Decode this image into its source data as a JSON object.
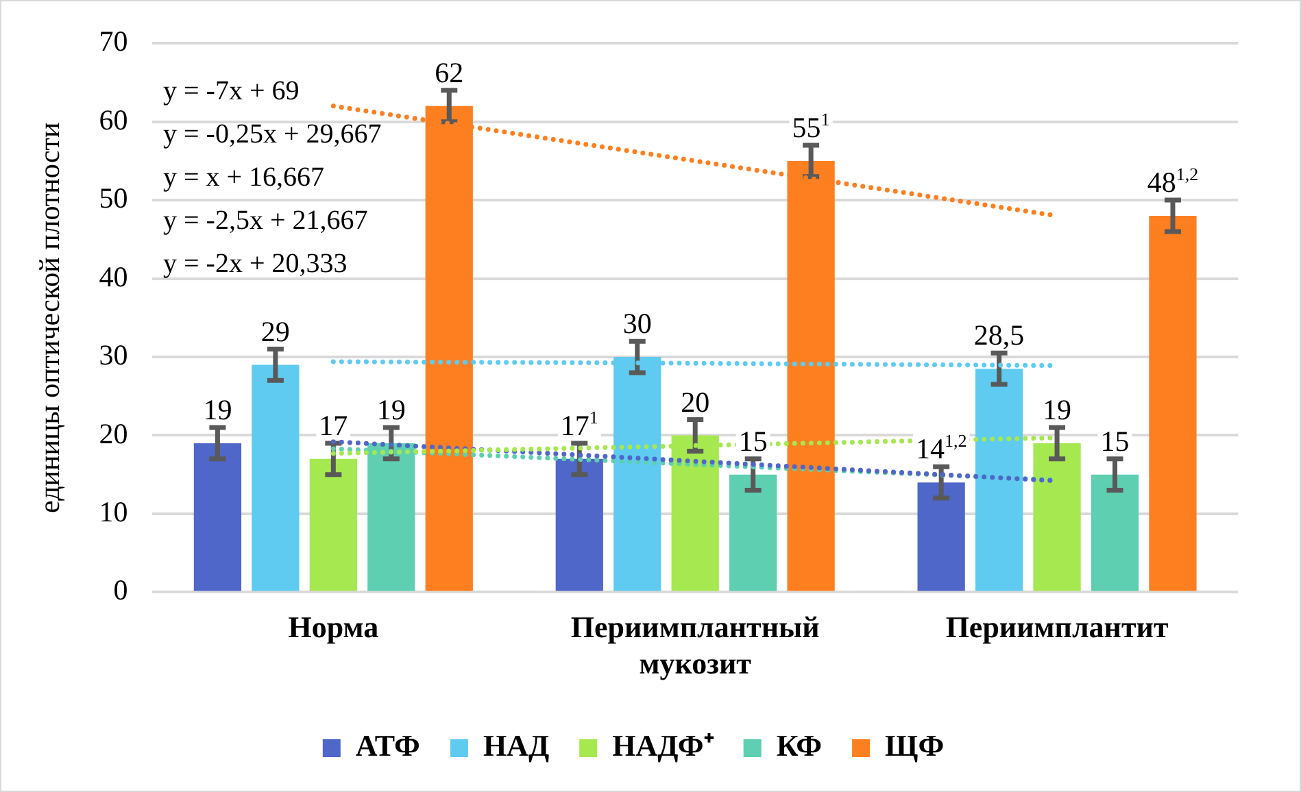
{
  "chart_data": {
    "type": "bar",
    "ylabel": "единицы оптической плотности",
    "categories": [
      "Норма",
      "Периимплантный мукозит",
      "Периимплантит"
    ],
    "ylim": [
      0,
      70
    ],
    "yticks": [
      0,
      10,
      20,
      30,
      40,
      50,
      60,
      70
    ],
    "grid": "y",
    "legend": "bottom",
    "line_style": "dotted",
    "marker": "none",
    "series": [
      {
        "name": "АТФ",
        "color": "#4f67c8",
        "values": [
          19,
          17,
          14
        ],
        "errors": [
          2,
          2,
          2
        ],
        "value_labels": [
          "19",
          "17$^{1}$",
          "14$^{1,2}$"
        ]
      },
      {
        "name": "НАД",
        "color": "#5fcbf0",
        "values": [
          29,
          30,
          28.5
        ],
        "errors": [
          2,
          2,
          2
        ],
        "value_labels": [
          "29",
          "30",
          "28,5"
        ]
      },
      {
        "name": "НАДФ⁺",
        "color": "#a5e84f",
        "values": [
          17,
          20,
          19
        ],
        "errors": [
          2,
          2,
          2
        ],
        "value_labels": [
          "17",
          "20",
          "19"
        ]
      },
      {
        "name": "КФ",
        "color": "#5ecfb0",
        "values": [
          19,
          15,
          15
        ],
        "errors": [
          2,
          2,
          2
        ],
        "value_labels": [
          "19",
          "15",
          "15"
        ]
      },
      {
        "name": "ЩФ",
        "color": "#fd7f20",
        "values": [
          62,
          55,
          48
        ],
        "errors": [
          2,
          2,
          2
        ],
        "value_labels": [
          "62",
          "55$^{1}$",
          "48$^{1,2}$"
        ]
      },
      {
        "type": "line",
        "color": "#fd7f20",
        "values": [
          62,
          55,
          48
        ]
      },
      {
        "type": "line",
        "color": "#5fcbf0",
        "values": [
          29.4,
          29.2,
          28.9
        ]
      },
      {
        "type": "line",
        "color": "#a5e84f",
        "values": [
          17.7,
          18.7,
          19.7
        ]
      },
      {
        "type": "line",
        "color": "#4f67c8",
        "values": [
          19.2,
          16.7,
          14.2
        ]
      },
      {
        "type": "line",
        "color": "#5ecfb0",
        "values": [
          18.3,
          16.3,
          14.3
        ]
      }
    ],
    "annotations": [
      "y = -7x + 69",
      "y = -0,25x + 29,667",
      "y = x + 16,667",
      "y = -2,5x + 21,667",
      "y = -2x + 20,333"
    ]
  }
}
